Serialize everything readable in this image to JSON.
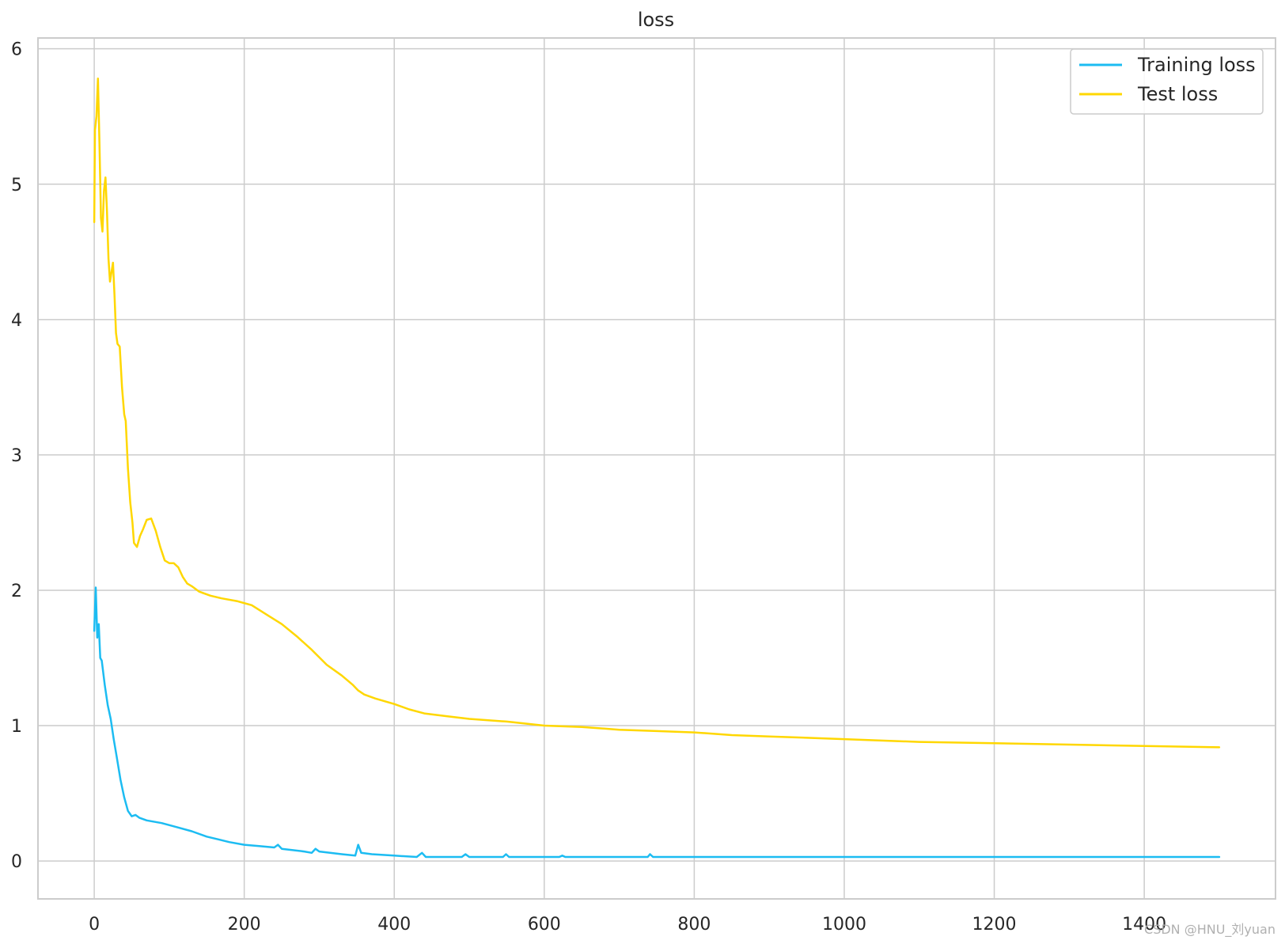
{
  "chart_data": {
    "type": "line",
    "title": "loss",
    "xlabel": "",
    "ylabel": "",
    "xlim": [
      -75,
      1575
    ],
    "ylim": [
      -0.28,
      6.08
    ],
    "xticks": [
      0,
      200,
      400,
      600,
      800,
      1000,
      1200,
      1400
    ],
    "yticks": [
      0,
      1,
      2,
      3,
      4,
      5,
      6
    ],
    "grid": true,
    "legend_position": "top-right",
    "series": [
      {
        "name": "Training loss",
        "color": "#1cbcf2",
        "points": [
          [
            0,
            1.7
          ],
          [
            2,
            2.02
          ],
          [
            4,
            1.65
          ],
          [
            6,
            1.75
          ],
          [
            8,
            1.5
          ],
          [
            10,
            1.48
          ],
          [
            14,
            1.3
          ],
          [
            18,
            1.15
          ],
          [
            22,
            1.05
          ],
          [
            26,
            0.9
          ],
          [
            30,
            0.77
          ],
          [
            35,
            0.6
          ],
          [
            40,
            0.47
          ],
          [
            45,
            0.37
          ],
          [
            50,
            0.33
          ],
          [
            55,
            0.34
          ],
          [
            60,
            0.32
          ],
          [
            70,
            0.3
          ],
          [
            90,
            0.28
          ],
          [
            110,
            0.25
          ],
          [
            130,
            0.22
          ],
          [
            150,
            0.18
          ],
          [
            165,
            0.16
          ],
          [
            180,
            0.14
          ],
          [
            200,
            0.12
          ],
          [
            220,
            0.11
          ],
          [
            240,
            0.1
          ],
          [
            245,
            0.12
          ],
          [
            250,
            0.09
          ],
          [
            280,
            0.07
          ],
          [
            290,
            0.06
          ],
          [
            295,
            0.09
          ],
          [
            300,
            0.07
          ],
          [
            330,
            0.05
          ],
          [
            348,
            0.04
          ],
          [
            352,
            0.12
          ],
          [
            356,
            0.06
          ],
          [
            370,
            0.05
          ],
          [
            400,
            0.04
          ],
          [
            430,
            0.03
          ],
          [
            437,
            0.06
          ],
          [
            442,
            0.03
          ],
          [
            490,
            0.03
          ],
          [
            495,
            0.05
          ],
          [
            500,
            0.03
          ],
          [
            545,
            0.03
          ],
          [
            549,
            0.05
          ],
          [
            553,
            0.03
          ],
          [
            620,
            0.03
          ],
          [
            624,
            0.04
          ],
          [
            628,
            0.03
          ],
          [
            700,
            0.03
          ],
          [
            738,
            0.03
          ],
          [
            741,
            0.05
          ],
          [
            745,
            0.03
          ],
          [
            800,
            0.03
          ],
          [
            900,
            0.03
          ],
          [
            1000,
            0.03
          ],
          [
            1100,
            0.03
          ],
          [
            1200,
            0.03
          ],
          [
            1300,
            0.03
          ],
          [
            1400,
            0.03
          ],
          [
            1500,
            0.03
          ]
        ]
      },
      {
        "name": "Test loss",
        "color": "#ffd700",
        "points": [
          [
            0,
            4.72
          ],
          [
            1,
            5.4
          ],
          [
            3,
            5.5
          ],
          [
            5,
            5.78
          ],
          [
            7,
            5.3
          ],
          [
            9,
            4.75
          ],
          [
            11,
            4.65
          ],
          [
            13,
            4.95
          ],
          [
            15,
            5.05
          ],
          [
            17,
            4.8
          ],
          [
            19,
            4.45
          ],
          [
            21,
            4.28
          ],
          [
            23,
            4.35
          ],
          [
            25,
            4.42
          ],
          [
            27,
            4.18
          ],
          [
            29,
            3.9
          ],
          [
            31,
            3.82
          ],
          [
            34,
            3.8
          ],
          [
            37,
            3.5
          ],
          [
            40,
            3.3
          ],
          [
            42,
            3.25
          ],
          [
            45,
            2.9
          ],
          [
            48,
            2.65
          ],
          [
            51,
            2.5
          ],
          [
            53,
            2.35
          ],
          [
            57,
            2.32
          ],
          [
            61,
            2.4
          ],
          [
            65,
            2.45
          ],
          [
            70,
            2.52
          ],
          [
            76,
            2.53
          ],
          [
            82,
            2.44
          ],
          [
            88,
            2.32
          ],
          [
            94,
            2.22
          ],
          [
            100,
            2.2
          ],
          [
            106,
            2.2
          ],
          [
            112,
            2.17
          ],
          [
            118,
            2.1
          ],
          [
            124,
            2.05
          ],
          [
            130,
            2.03
          ],
          [
            140,
            1.99
          ],
          [
            155,
            1.96
          ],
          [
            170,
            1.94
          ],
          [
            190,
            1.92
          ],
          [
            210,
            1.89
          ],
          [
            230,
            1.82
          ],
          [
            250,
            1.75
          ],
          [
            270,
            1.66
          ],
          [
            290,
            1.56
          ],
          [
            310,
            1.45
          ],
          [
            330,
            1.37
          ],
          [
            345,
            1.3
          ],
          [
            352,
            1.26
          ],
          [
            360,
            1.23
          ],
          [
            375,
            1.2
          ],
          [
            400,
            1.16
          ],
          [
            420,
            1.12
          ],
          [
            440,
            1.09
          ],
          [
            470,
            1.07
          ],
          [
            500,
            1.05
          ],
          [
            550,
            1.03
          ],
          [
            600,
            1.0
          ],
          [
            650,
            0.99
          ],
          [
            700,
            0.97
          ],
          [
            750,
            0.96
          ],
          [
            800,
            0.95
          ],
          [
            850,
            0.93
          ],
          [
            900,
            0.92
          ],
          [
            950,
            0.91
          ],
          [
            1000,
            0.9
          ],
          [
            1100,
            0.88
          ],
          [
            1200,
            0.87
          ],
          [
            1300,
            0.86
          ],
          [
            1400,
            0.85
          ],
          [
            1500,
            0.84
          ]
        ]
      }
    ]
  },
  "watermark": "CSDN @HNU_刘yuan"
}
